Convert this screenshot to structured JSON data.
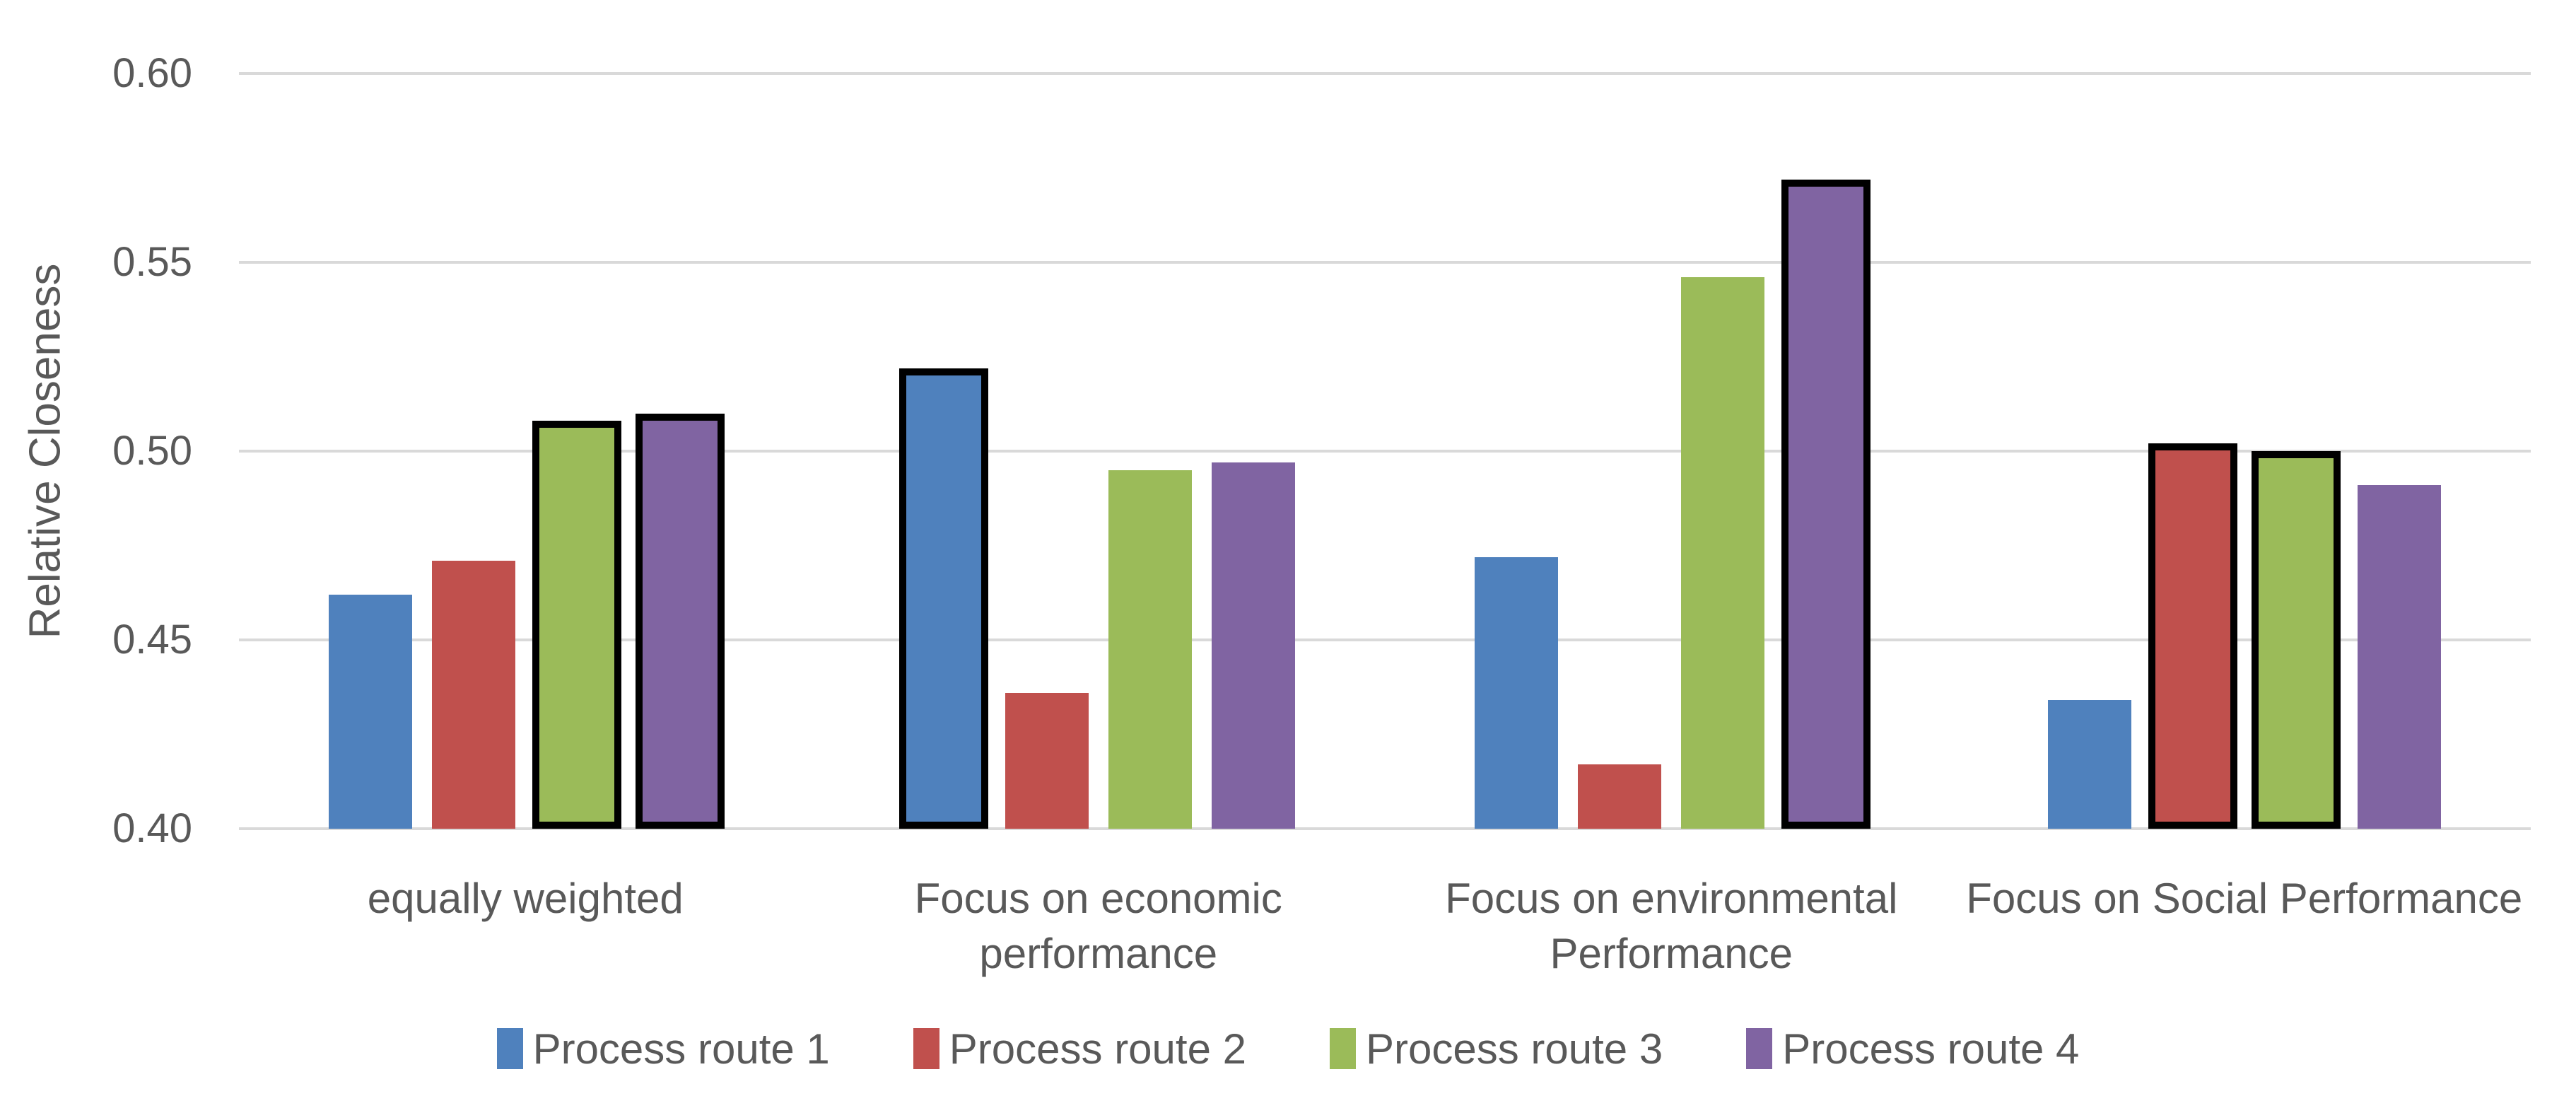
{
  "figure": {
    "background": "#FFFFFF",
    "text_color": "#595959",
    "gridline_color": "#D9D9D9",
    "highlight_border_color": "#000000"
  },
  "chart_data": {
    "type": "bar",
    "title": "",
    "xlabel": "",
    "ylabel": "Relative Closeness",
    "ylim": [
      0.4,
      0.6
    ],
    "grid": true,
    "legend_position": "bottom",
    "yticks": [
      {
        "value": 0.6,
        "label": "0.60"
      },
      {
        "value": 0.55,
        "label": "0.55"
      },
      {
        "value": 0.5,
        "label": "0.50"
      },
      {
        "value": 0.45,
        "label": "0.45"
      },
      {
        "value": 0.4,
        "label": "0.40"
      }
    ],
    "categories": [
      "equally weighted",
      "Focus on economic performance",
      "Focus on environmental Performance",
      "Focus on Social Performance"
    ],
    "category_label_lines": [
      [
        "equally weighted"
      ],
      [
        "Focus on economic",
        "performance"
      ],
      [
        "Focus on environmental",
        "Performance"
      ],
      [
        "Focus on Social Performance"
      ]
    ],
    "series": [
      {
        "name": "Process route 1",
        "color": "#4F81BD",
        "values": [
          0.462,
          0.522,
          0.472,
          0.434
        ],
        "outlined": [
          false,
          true,
          false,
          false
        ]
      },
      {
        "name": "Process route 2",
        "color": "#C0504D",
        "values": [
          0.471,
          0.436,
          0.417,
          0.502
        ],
        "outlined": [
          false,
          false,
          false,
          true
        ]
      },
      {
        "name": "Process route 3",
        "color": "#9BBB59",
        "values": [
          0.508,
          0.495,
          0.546,
          0.5
        ],
        "outlined": [
          true,
          false,
          false,
          true
        ]
      },
      {
        "name": "Process route 4",
        "color": "#8064A2",
        "values": [
          0.51,
          0.497,
          0.572,
          0.491
        ],
        "outlined": [
          true,
          false,
          true,
          false
        ]
      }
    ]
  }
}
